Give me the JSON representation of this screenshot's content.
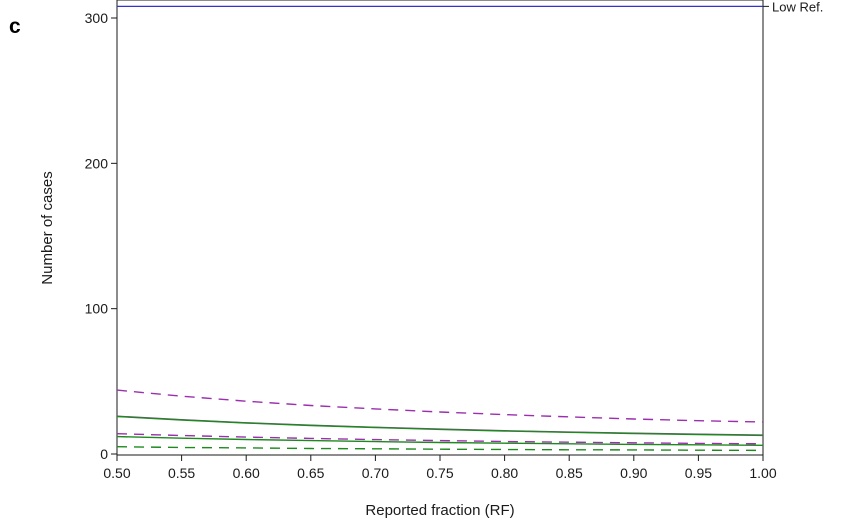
{
  "panel_label": "c",
  "chart_data": {
    "type": "line",
    "title": "",
    "xlabel": "Reported fraction (RF)",
    "ylabel": "Number of cases",
    "xlim": [
      0.5,
      1.0
    ],
    "ylim": [
      0,
      310
    ],
    "x_ticks": [
      "0.50",
      "0.55",
      "0.60",
      "0.65",
      "0.70",
      "0.75",
      "0.80",
      "0.85",
      "0.90",
      "0.95",
      "1.00"
    ],
    "y_ticks": [
      "0",
      "100",
      "200",
      "300"
    ],
    "grid": false,
    "x": [
      0.5,
      0.55,
      0.6,
      0.65,
      0.7,
      0.75,
      0.8,
      0.85,
      0.9,
      0.95,
      1.0
    ],
    "series": [
      {
        "color": "#9b2fae",
        "dash": "dashed",
        "values": [
          44,
          39.8,
          36.3,
          33.4,
          31,
          28.9,
          27.1,
          25.5,
          24.1,
          22.9,
          22
        ]
      },
      {
        "color": "#9b2fae",
        "dash": "solid",
        "values": [
          26,
          23.6,
          21.5,
          19.8,
          18.4,
          17.1,
          16,
          15.1,
          14.3,
          13.6,
          13
        ]
      },
      {
        "color": "#1e8a1e",
        "dash": "solid",
        "values": [
          25.8,
          23.4,
          21.3,
          19.6,
          18.2,
          16.9,
          15.8,
          14.9,
          14.1,
          13.4,
          12.8
        ]
      },
      {
        "color": "#9b2fae",
        "dash": "dashed",
        "values": [
          14,
          12.7,
          11.6,
          10.7,
          9.9,
          9.2,
          8.6,
          8.1,
          7.7,
          7.3,
          7
        ]
      },
      {
        "color": "#1e8a1e",
        "dash": "solid",
        "values": [
          12,
          10.9,
          10,
          9.2,
          8.5,
          7.9,
          7.4,
          7,
          6.6,
          6.3,
          6
        ]
      },
      {
        "color": "#1e8a1e",
        "dash": "dashed",
        "values": [
          5,
          4.5,
          4.2,
          3.8,
          3.6,
          3.3,
          3.1,
          2.9,
          2.8,
          2.6,
          2.5
        ]
      }
    ],
    "reference_lines": [
      {
        "label": "Low Ref.",
        "y": 308,
        "color": "#3333cc"
      }
    ]
  }
}
